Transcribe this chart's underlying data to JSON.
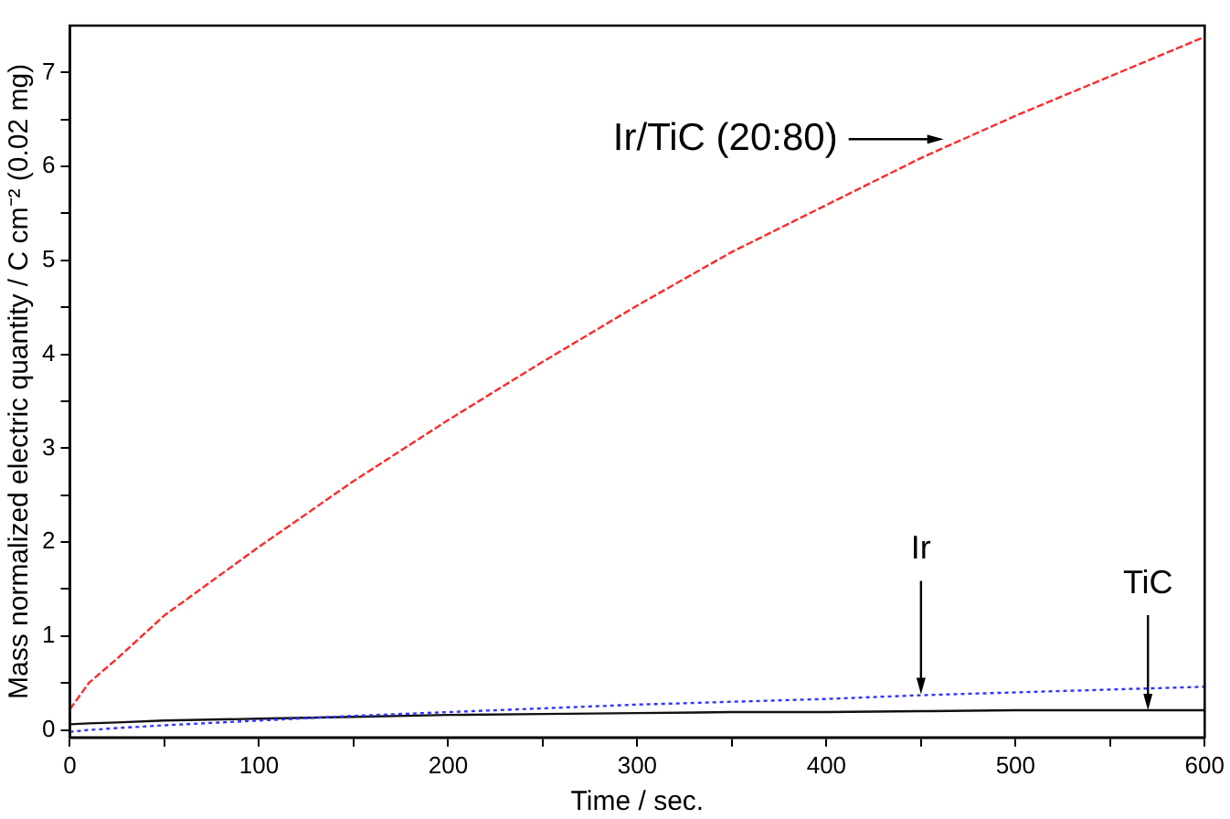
{
  "chart_data": {
    "type": "line",
    "xlabel": "Time / sec.",
    "ylabel": "Mass normalized electric quantity / C cm⁻² (0.02 mg)",
    "xlim": [
      0,
      600
    ],
    "ylim": [
      -0.08,
      7.5
    ],
    "xticks": [
      0,
      {
        "value": 50,
        "label": null
      },
      100,
      {
        "value": 150,
        "label": null
      },
      200,
      {
        "value": 250,
        "label": null
      },
      300,
      {
        "value": 350,
        "label": null
      },
      400,
      {
        "value": 450,
        "label": null
      },
      500,
      {
        "value": 550,
        "label": null
      },
      600
    ],
    "yticks": [
      0,
      {
        "value": 0.5,
        "label": null
      },
      1,
      {
        "value": 1.5,
        "label": null
      },
      2,
      {
        "value": 2.5,
        "label": null
      },
      3,
      {
        "value": 3.5,
        "label": null
      },
      4,
      {
        "value": 4.5,
        "label": null
      },
      5,
      {
        "value": 5.5,
        "label": null
      },
      6,
      {
        "value": 6.5,
        "label": null
      },
      7
    ],
    "grid": false,
    "legend": false,
    "marker": "none",
    "x": [
      0,
      10,
      25,
      50,
      100,
      150,
      200,
      250,
      300,
      350,
      400,
      450,
      500,
      550,
      600
    ],
    "series": [
      {
        "color": "#ff2a2a",
        "line_style": "dashed",
        "values": [
          0.22,
          0.5,
          0.76,
          1.22,
          1.95,
          2.65,
          3.3,
          3.92,
          4.52,
          5.09,
          5.59,
          6.09,
          6.54,
          6.96,
          7.38
        ]
      },
      {
        "color": "#3333ff",
        "line_style": "dotted",
        "values": [
          -0.02,
          0.0,
          0.02,
          0.05,
          0.1,
          0.15,
          0.19,
          0.23,
          0.27,
          0.3,
          0.33,
          0.37,
          0.4,
          0.43,
          0.46
        ]
      },
      {
        "color": "#111111",
        "line_style": "solid",
        "values": [
          0.06,
          0.07,
          0.08,
          0.1,
          0.12,
          0.14,
          0.16,
          0.17,
          0.18,
          0.19,
          0.19,
          0.2,
          0.21,
          0.21,
          0.21
        ]
      }
    ],
    "annotations": [
      {
        "text": "Ir/TiC (20:80)",
        "x": 462,
        "y": 6.29
      },
      {
        "text": "Ir",
        "x": 450,
        "y": 0.38
      },
      {
        "text": "TiC",
        "x": 570,
        "y": 0.21
      }
    ]
  }
}
